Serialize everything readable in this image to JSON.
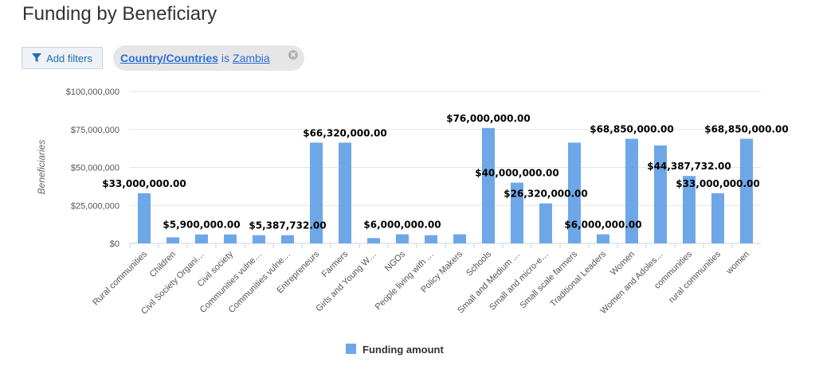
{
  "page": {
    "title": "Funding by Beneficiary"
  },
  "filters": {
    "add_label": "Add filters",
    "active": {
      "field": "Country/Countries",
      "operator": "is",
      "value": "Zambia"
    }
  },
  "colors": {
    "bar": "#6ea7e8",
    "grid": "#e4e4e4",
    "accent": "#2a6fd6"
  },
  "chart_data": {
    "type": "bar",
    "ylabel": "Beneficiaries",
    "ylim": [
      0,
      100000000
    ],
    "yticks": [
      0,
      25000000,
      50000000,
      75000000,
      100000000
    ],
    "ytick_labels": [
      "$0",
      "$25,000,000",
      "$50,000,000",
      "$75,000,000",
      "$100,000,000"
    ],
    "categories": [
      "Rural communities",
      "Children",
      "Civil Society Organi…",
      "Civil society",
      "Communities vulne…",
      "Communities vulne…",
      "Entrepreneurs",
      "Farmers",
      "Girls and Young W…",
      "NGOs",
      "People living with …",
      "Policy Makers",
      "Schools",
      "Small and Medium …",
      "Small and micro-e…",
      "Small scale farmers",
      "Traditional Leaders",
      "Women",
      "Women and Adoles…",
      "communities",
      "rural communities",
      "women"
    ],
    "series": [
      {
        "name": "Funding amount",
        "values": [
          33000000,
          4000000,
          5900000,
          5900000,
          5387732,
          5387732,
          66320000,
          66320000,
          3500000,
          6000000,
          5400000,
          6000000,
          76000000,
          40000000,
          26320000,
          66320000,
          6000000,
          68850000,
          64500000,
          44387732,
          33000000,
          68850000
        ]
      }
    ],
    "data_labels": [
      {
        "index": 0,
        "text": "$33,000,000.00"
      },
      {
        "index": 2,
        "text": "$5,900,000.00"
      },
      {
        "index": 5,
        "text": "$5,387,732.00"
      },
      {
        "index": 7,
        "text": "$66,320,000.00"
      },
      {
        "index": 9,
        "text": "$6,000,000.00"
      },
      {
        "index": 12,
        "text": "$76,000,000.00"
      },
      {
        "index": 13,
        "text": "$40,000,000.00"
      },
      {
        "index": 14,
        "text": "$26,320,000.00"
      },
      {
        "index": 16,
        "text": "$6,000,000.00"
      },
      {
        "index": 17,
        "text": "$68,850,000.00"
      },
      {
        "index": 19,
        "text": "$44,387,732.00"
      },
      {
        "index": 20,
        "text": "$33,000,000.00"
      },
      {
        "index": 21,
        "text": "$68,850,000.00"
      }
    ],
    "legend": {
      "position": "bottom"
    },
    "grid": true
  }
}
